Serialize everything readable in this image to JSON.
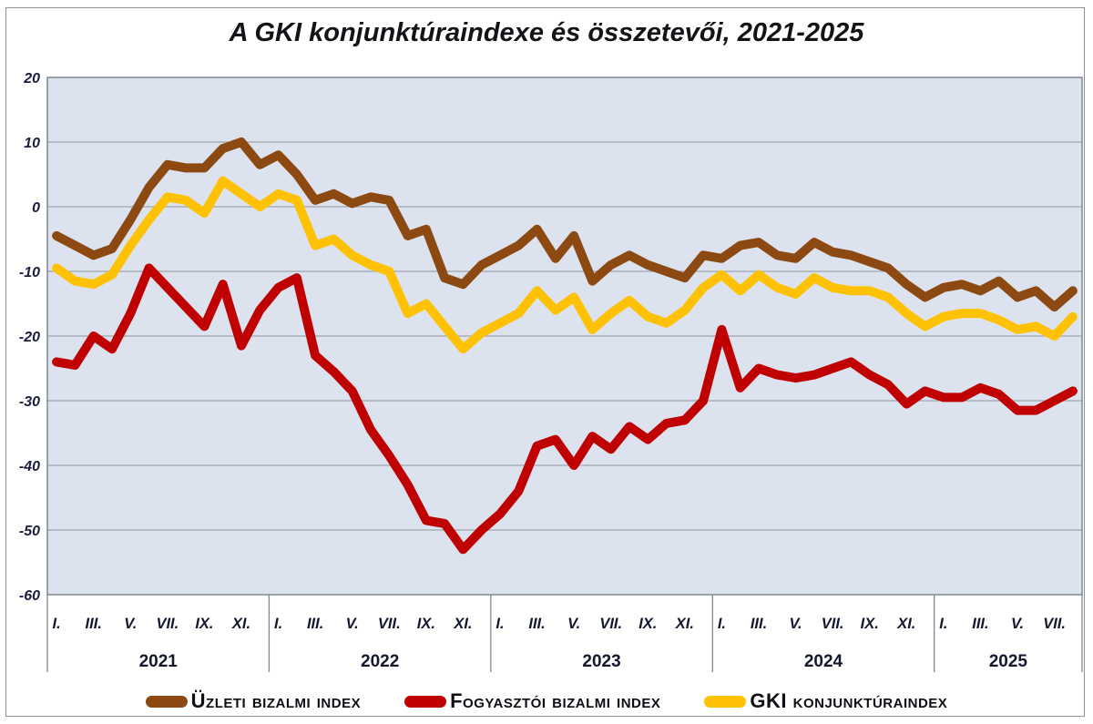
{
  "title": "A GKI konjunktúraindexe és összetevői, 2021-2025",
  "legend": {
    "items": [
      {
        "label": "Üzleti bizalmi index",
        "color": "#8c4a12"
      },
      {
        "label": "Fogyasztói bizalmi index",
        "color": "#c00101"
      },
      {
        "label": "GKI konjunktúraindex",
        "color": "#ffc103"
      }
    ]
  },
  "chart_data": {
    "type": "line",
    "title": "A GKI konjunktúraindexe és összetevői, 2021-2025",
    "ylim": [
      -60,
      20
    ],
    "ytick_labels": [
      "20",
      "10",
      "0",
      "-10",
      "-20",
      "-30",
      "-40",
      "-50",
      "-60"
    ],
    "grid": true,
    "plot_bg": "#dce3ee",
    "grid_color": "#a0a5ad",
    "border_color": "#7f8893",
    "years": [
      {
        "label": "2021",
        "n_months": 12,
        "month_labels": [
          "I.",
          "III.",
          "V.",
          "VII.",
          "IX.",
          "XI."
        ],
        "month_label_slots": [
          0,
          2,
          4,
          6,
          8,
          10
        ]
      },
      {
        "label": "2022",
        "n_months": 12,
        "month_labels": [
          "I.",
          "III.",
          "V.",
          "VII.",
          "IX.",
          "XI."
        ],
        "month_label_slots": [
          0,
          2,
          4,
          6,
          8,
          10
        ]
      },
      {
        "label": "2023",
        "n_months": 12,
        "month_labels": [
          "I.",
          "III.",
          "V.",
          "VII.",
          "IX.",
          "XI."
        ],
        "month_label_slots": [
          0,
          2,
          4,
          6,
          8,
          10
        ]
      },
      {
        "label": "2024",
        "n_months": 12,
        "month_labels": [
          "I.",
          "III.",
          "V.",
          "VII.",
          "IX.",
          "XI."
        ],
        "month_label_slots": [
          0,
          2,
          4,
          6,
          8,
          10
        ]
      },
      {
        "label": "2025",
        "n_months": 8,
        "month_labels": [
          "I.",
          "III.",
          "V.",
          "VII."
        ],
        "month_label_slots": [
          0,
          2,
          4,
          6
        ]
      }
    ],
    "series": [
      {
        "name": "Üzleti bizalmi index",
        "color": "#8c4a12",
        "values": [
          -4.5,
          -6,
          -7.5,
          -6.5,
          -2,
          3,
          6.5,
          6,
          6,
          9,
          10,
          6.5,
          8,
          5,
          1,
          2,
          0.5,
          1.5,
          1,
          -4.5,
          -3.5,
          -11,
          -12,
          -9,
          -7.5,
          -6,
          -3.5,
          -8,
          -4.5,
          -11.5,
          -9,
          -7.5,
          -9,
          -10,
          -11,
          -7.5,
          -8,
          -6,
          -5.5,
          -7.5,
          -8,
          -5.5,
          -7,
          -7.5,
          -8.5,
          -9.5,
          -12,
          -14,
          -12.5,
          -12,
          -13,
          -11.5,
          -14,
          -13,
          -15.5,
          -13
        ]
      },
      {
        "name": "Fogyasztói bizalmi index",
        "color": "#c00101",
        "values": [
          -24,
          -24.5,
          -20,
          -22,
          -16.5,
          -9.5,
          -12.5,
          -15.5,
          -18.5,
          -12,
          -21.5,
          -16,
          -12.5,
          -11,
          -23,
          -25.5,
          -28.5,
          -34.5,
          -38.5,
          -43,
          -48.5,
          -49,
          -53,
          -50,
          -47.5,
          -44,
          -37,
          -36,
          -40,
          -35.5,
          -37.5,
          -34,
          -36,
          -33.5,
          -33,
          -30,
          -19,
          -28,
          -25,
          -26,
          -26.5,
          -26,
          -25,
          -24,
          -26,
          -27.5,
          -30.5,
          -28.5,
          -29.5,
          -29.5,
          -28,
          -29,
          -31.5,
          -31.5,
          -30,
          -28.5
        ]
      },
      {
        "name": "GKI konjunktúraindex",
        "color": "#ffc103",
        "values": [
          -9.5,
          -11.5,
          -12,
          -10.5,
          -6,
          -2,
          1.5,
          1,
          -1,
          4,
          2,
          0,
          2,
          1,
          -6,
          -5,
          -7.5,
          -9,
          -10,
          -16.5,
          -15,
          -18.5,
          -22,
          -19.5,
          -18,
          -16.5,
          -13,
          -16,
          -14,
          -19,
          -16.5,
          -14.5,
          -17,
          -18,
          -16,
          -12.5,
          -10.5,
          -13,
          -10.5,
          -12.5,
          -13.5,
          -11,
          -12.5,
          -13,
          -13,
          -14,
          -16.5,
          -18.5,
          -17,
          -16.5,
          -16.5,
          -17.5,
          -19,
          -18.5,
          -20,
          -17
        ]
      }
    ]
  }
}
